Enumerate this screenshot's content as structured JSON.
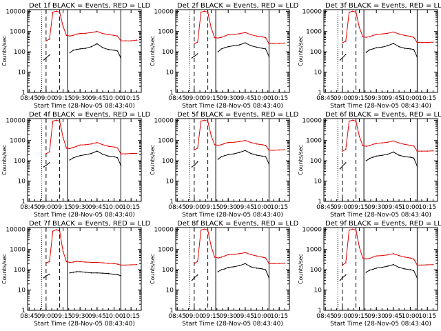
{
  "figure": {
    "panels": [
      {
        "title": "Det  1f  BLACK = Events, RED = LLD",
        "detector": "1f"
      },
      {
        "title": "Det  2f  BLACK = Events, RED = LLD",
        "detector": "2f"
      },
      {
        "title": "Det  3f  BLACK = Events, RED = LLD",
        "detector": "3f"
      },
      {
        "title": "Det  4f  BLACK = Events, RED = LLD",
        "detector": "4f"
      },
      {
        "title": "Det  5f  BLACK = Events, RED = LLD",
        "detector": "5f"
      },
      {
        "title": "Det  6f  BLACK = Events, RED = LLD",
        "detector": "6f"
      },
      {
        "title": "Det  7f  BLACK = Events, RED = LLD",
        "detector": "7f"
      },
      {
        "title": "Det  8f  BLACK = Events, RED = LLD",
        "detector": "8f"
      },
      {
        "title": "Det  9f  BLACK = Events, RED = LLD",
        "detector": "9f"
      }
    ],
    "ylabel": "Counts/sec",
    "xlabel": "Start Time (28-Nov-05 08:43:40)",
    "xticks": [
      "08:45",
      "09:00",
      "09:15",
      "09:30",
      "09:45",
      "10:00",
      "10:15"
    ],
    "yticks": [
      "1",
      "10",
      "100",
      "1000",
      "10000"
    ],
    "colors": {
      "events": "#000000",
      "lld": "#e00000",
      "axes": "#000000",
      "background": "#ffffff"
    }
  },
  "chart_data": {
    "type": "line",
    "yscale": "log",
    "xlim": [
      "08:43:40",
      "10:24:00"
    ],
    "ylim": [
      1,
      12000
    ],
    "x": [
      "08:45",
      "08:50",
      "08:55",
      "08:58",
      "09:00",
      "09:03",
      "09:06",
      "09:09",
      "09:12",
      "09:15",
      "09:18",
      "09:21",
      "09:24",
      "09:27",
      "09:30",
      "09:35",
      "09:40",
      "09:45",
      "09:50",
      "09:55",
      "10:00",
      "10:03",
      "10:06",
      "10:10",
      "10:15",
      "10:20"
    ],
    "markers": {
      "dotted": [
        "08:56"
      ],
      "dashed": [
        "09:00",
        "09:12"
      ],
      "solid": [
        "09:19",
        "10:06"
      ]
    },
    "series": [
      {
        "name": "LLD",
        "panel": "1f",
        "values": [
          null,
          null,
          null,
          null,
          350,
          420,
          9000,
          10000,
          9000,
          1800,
          650,
          600,
          650,
          750,
          800,
          820,
          900,
          1000,
          800,
          700,
          650,
          600,
          350,
          350,
          350,
          380
        ]
      },
      {
        "name": "Events",
        "panel": "1f",
        "values": [
          null,
          null,
          null,
          40,
          50,
          70,
          null,
          null,
          null,
          null,
          null,
          90,
          120,
          130,
          140,
          150,
          180,
          250,
          160,
          130,
          120,
          110,
          50,
          null,
          null,
          null
        ]
      },
      {
        "name": "LLD",
        "panel": "2f",
        "values": [
          null,
          null,
          null,
          null,
          250,
          300,
          9000,
          10000,
          9000,
          1500,
          500,
          480,
          520,
          600,
          700,
          720,
          780,
          900,
          700,
          600,
          550,
          500,
          250,
          260,
          260,
          270
        ]
      },
      {
        "name": "Events",
        "panel": "2f",
        "values": [
          null,
          null,
          null,
          50,
          60,
          80,
          null,
          null,
          null,
          null,
          null,
          100,
          140,
          160,
          180,
          200,
          220,
          280,
          200,
          170,
          150,
          140,
          60,
          null,
          null,
          null
        ]
      },
      {
        "name": "LLD",
        "panel": "3f",
        "values": [
          null,
          null,
          null,
          null,
          280,
          330,
          9000,
          10000,
          9000,
          1600,
          560,
          520,
          560,
          640,
          720,
          760,
          820,
          950,
          760,
          640,
          580,
          520,
          290,
          290,
          290,
          300
        ]
      },
      {
        "name": "Events",
        "panel": "3f",
        "values": [
          null,
          null,
          null,
          40,
          50,
          75,
          null,
          null,
          null,
          null,
          null,
          95,
          125,
          140,
          160,
          170,
          200,
          260,
          180,
          150,
          140,
          130,
          55,
          null,
          null,
          null
        ]
      },
      {
        "name": "LLD",
        "panel": "4f",
        "values": [
          null,
          null,
          null,
          null,
          220,
          280,
          9000,
          10000,
          9000,
          1400,
          420,
          400,
          450,
          520,
          600,
          620,
          680,
          800,
          620,
          520,
          480,
          430,
          220,
          220,
          230,
          230
        ]
      },
      {
        "name": "Events",
        "panel": "4f",
        "values": [
          null,
          null,
          null,
          50,
          60,
          80,
          null,
          null,
          null,
          null,
          null,
          110,
          140,
          160,
          180,
          200,
          230,
          300,
          210,
          170,
          160,
          140,
          60,
          null,
          null,
          null
        ]
      },
      {
        "name": "LLD",
        "panel": "5f",
        "values": [
          null,
          null,
          null,
          null,
          350,
          420,
          9000,
          10000,
          9000,
          1700,
          620,
          580,
          620,
          720,
          800,
          820,
          880,
          1000,
          800,
          680,
          620,
          580,
          330,
          330,
          340,
          350
        ]
      },
      {
        "name": "Events",
        "panel": "5f",
        "values": [
          null,
          null,
          null,
          50,
          60,
          90,
          null,
          null,
          null,
          null,
          null,
          120,
          160,
          180,
          200,
          220,
          260,
          320,
          230,
          190,
          170,
          160,
          70,
          null,
          null,
          null
        ]
      },
      {
        "name": "LLD",
        "panel": "6f",
        "values": [
          null,
          null,
          null,
          null,
          300,
          360,
          9000,
          10000,
          9000,
          1600,
          560,
          520,
          560,
          650,
          720,
          760,
          820,
          950,
          760,
          640,
          580,
          540,
          300,
          300,
          300,
          310
        ]
      },
      {
        "name": "Events",
        "panel": "6f",
        "values": [
          null,
          null,
          null,
          40,
          55,
          80,
          null,
          null,
          null,
          null,
          null,
          100,
          130,
          150,
          170,
          185,
          210,
          270,
          190,
          160,
          150,
          135,
          55,
          null,
          null,
          null
        ]
      },
      {
        "name": "LLD",
        "panel": "7f",
        "values": [
          null,
          null,
          null,
          null,
          220,
          250,
          8000,
          9500,
          8000,
          800,
          250,
          230,
          240,
          260,
          250,
          240,
          230,
          230,
          220,
          210,
          200,
          190,
          170,
          170,
          175,
          180
        ]
      },
      {
        "name": "Events",
        "panel": "7f",
        "values": [
          null,
          null,
          null,
          40,
          50,
          60,
          null,
          null,
          null,
          null,
          null,
          70,
          75,
          80,
          80,
          75,
          70,
          70,
          68,
          65,
          60,
          58,
          50,
          null,
          null,
          null
        ]
      },
      {
        "name": "LLD",
        "panel": "8f",
        "values": [
          null,
          null,
          null,
          null,
          200,
          260,
          9000,
          10000,
          9000,
          1400,
          420,
          380,
          420,
          480,
          560,
          580,
          620,
          700,
          560,
          480,
          420,
          380,
          200,
          200,
          205,
          210
        ]
      },
      {
        "name": "Events",
        "panel": "8f",
        "values": [
          null,
          null,
          null,
          30,
          40,
          55,
          null,
          null,
          null,
          null,
          null,
          80,
          100,
          110,
          130,
          140,
          160,
          200,
          140,
          120,
          110,
          100,
          40,
          null,
          null,
          null
        ]
      },
      {
        "name": "LLD",
        "panel": "9f",
        "values": [
          null,
          null,
          null,
          null,
          170,
          220,
          9000,
          10000,
          9000,
          1300,
          380,
          340,
          360,
          420,
          480,
          500,
          540,
          620,
          500,
          420,
          380,
          340,
          170,
          170,
          175,
          180
        ]
      },
      {
        "name": "Events",
        "panel": "9f",
        "values": [
          null,
          null,
          null,
          30,
          40,
          55,
          null,
          null,
          null,
          null,
          null,
          75,
          95,
          105,
          120,
          130,
          150,
          180,
          130,
          110,
          100,
          90,
          40,
          null,
          null,
          null
        ]
      }
    ]
  }
}
